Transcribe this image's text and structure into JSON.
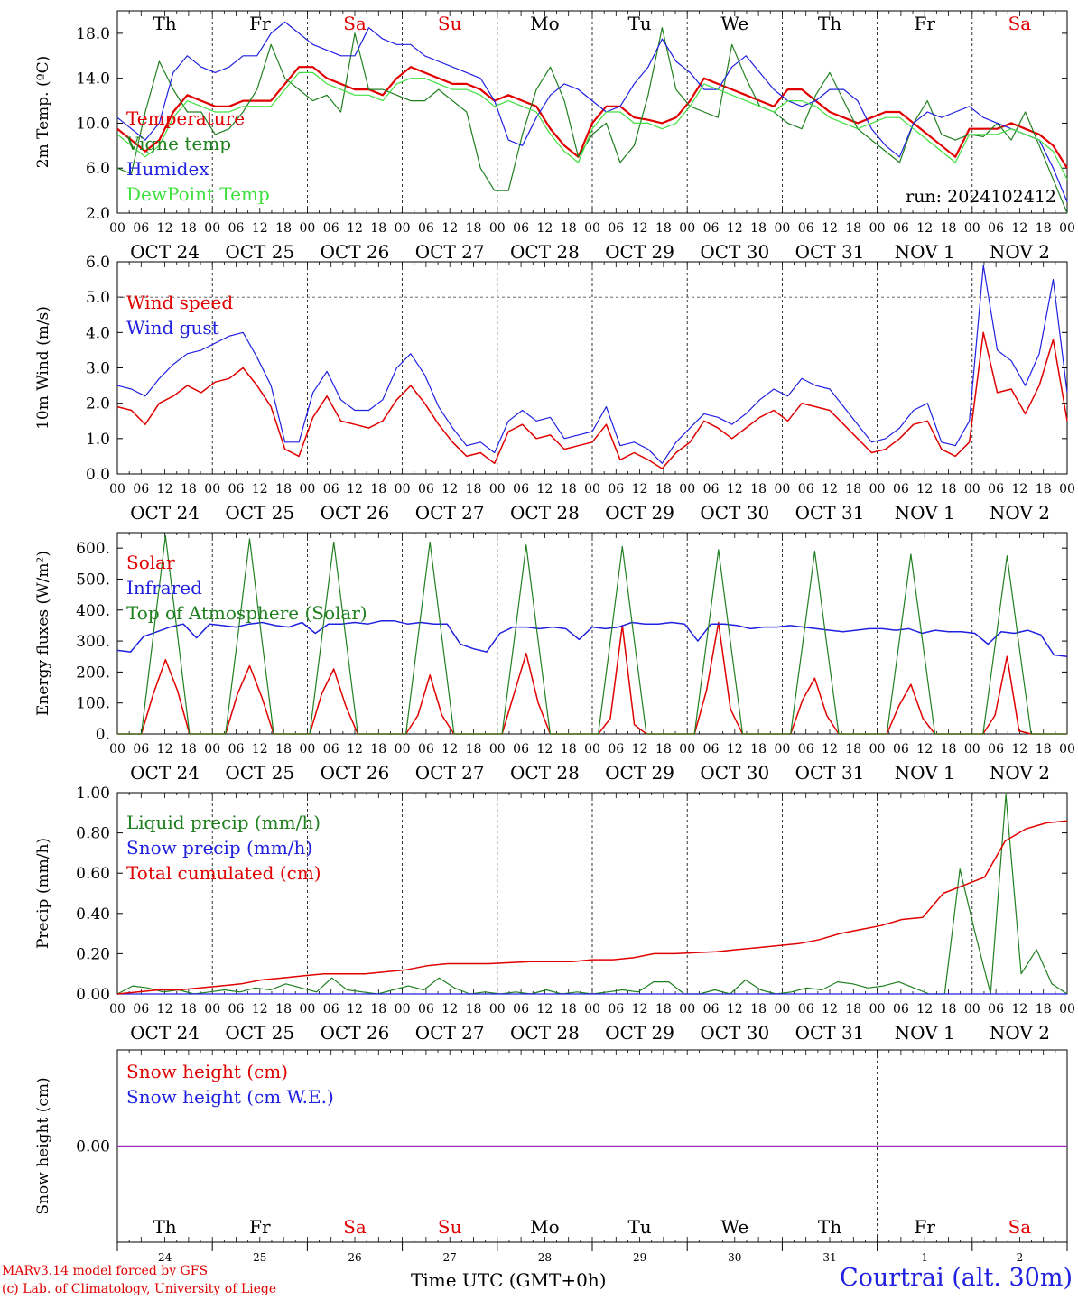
{
  "run_label": "run: 2024102412",
  "weekdays": [
    {
      "label": "Th",
      "weekend": false
    },
    {
      "label": "Fr",
      "weekend": false
    },
    {
      "label": "Sa",
      "weekend": true
    },
    {
      "label": "Su",
      "weekend": true
    },
    {
      "label": "Mo",
      "weekend": false
    },
    {
      "label": "Tu",
      "weekend": false
    },
    {
      "label": "We",
      "weekend": false
    },
    {
      "label": "Th",
      "weekend": false
    },
    {
      "label": "Fr",
      "weekend": false
    },
    {
      "label": "Sa",
      "weekend": true
    }
  ],
  "dates": [
    "OCT 24",
    "OCT 25",
    "OCT 26",
    "OCT 27",
    "OCT 28",
    "OCT 29",
    "OCT 30",
    "OCT 31",
    "NOV  1",
    "NOV  2"
  ],
  "hour_ticks": [
    "00",
    "06",
    "12",
    "18"
  ],
  "day_numbers": [
    "24",
    "25",
    "26",
    "27",
    "28",
    "29",
    "30",
    "31",
    "1",
    "2"
  ],
  "footer": {
    "credit_line1": "MARv3.14 model forced by GFS",
    "credit_line2": "(c) Lab. of Climatology, University of Liege",
    "time_label": "Time UTC (GMT+0h)",
    "station": "Courtrai (alt. 30m)"
  },
  "colors": {
    "red": "#e00000",
    "green": "#208020",
    "blue": "#2020e0",
    "lightgreen": "#40e040",
    "purple": "#a030c0",
    "weekend": "#e00000"
  },
  "chart_data": [
    {
      "id": "temp",
      "type": "line",
      "ylabel": "2m Temp. (ºC)",
      "ylim": [
        2,
        20
      ],
      "ytick_values": [
        2,
        6,
        10,
        14,
        18
      ],
      "yticks": [
        "2.0",
        "6.0",
        "10.0",
        "14.0",
        "18.0"
      ],
      "step_hours": 3,
      "show_weekdays": true,
      "show_run": true,
      "series": [
        {
          "name": "Temperature",
          "color": "red",
          "width": 2.2,
          "values": [
            9.5,
            8.5,
            7.5,
            8.5,
            11,
            12.5,
            12,
            11.5,
            11.5,
            12,
            12,
            12,
            13.5,
            15,
            15,
            14,
            13.5,
            13,
            13,
            12.5,
            14,
            15,
            14.5,
            14,
            13.5,
            13.5,
            13,
            12,
            12.5,
            12,
            11.5,
            9.5,
            8,
            7,
            10,
            11.5,
            11.5,
            10.5,
            10.3,
            10,
            10.5,
            12,
            14,
            13.5,
            13,
            12.5,
            12,
            11.5,
            13,
            13,
            12,
            11,
            10.5,
            10,
            10.5,
            11,
            11,
            10,
            9,
            8,
            7,
            9.5,
            9.5,
            9.5,
            10,
            9.5,
            9,
            8,
            6
          ]
        },
        {
          "name": "Vigne temp",
          "color": "green",
          "width": 1.2,
          "values": [
            6,
            5.5,
            11,
            15.5,
            13,
            11,
            11,
            9,
            9.5,
            11,
            13,
            17,
            14,
            13,
            12,
            12.5,
            11,
            18,
            13,
            13,
            12.5,
            12,
            12,
            13,
            12,
            11,
            6,
            4,
            4,
            9,
            13,
            15,
            12,
            7,
            9,
            10,
            6.5,
            8,
            12.5,
            18.5,
            13,
            11.5,
            11,
            10.5,
            17,
            14,
            11.5,
            11,
            10,
            9.5,
            12.5,
            14.5,
            12,
            9.5,
            8.5,
            7.5,
            6.5,
            10,
            12,
            9,
            8.5,
            9,
            8.8,
            10,
            8.5,
            11,
            8,
            5,
            2
          ]
        },
        {
          "name": "Humidex",
          "color": "blue",
          "width": 1.2,
          "values": [
            10.5,
            9.5,
            8.5,
            10,
            14.5,
            16,
            15,
            14.5,
            15,
            16,
            16,
            18,
            19,
            18,
            17,
            16.5,
            16,
            16,
            18.5,
            17.5,
            17,
            17,
            16,
            15.5,
            15,
            14.5,
            14,
            12,
            8.5,
            8,
            10.5,
            12.5,
            13.5,
            13,
            12,
            11,
            11.5,
            13.5,
            15,
            17.5,
            15.5,
            14.5,
            13,
            13,
            15,
            16,
            14.5,
            13,
            12,
            11.5,
            12,
            13,
            13,
            12,
            9.5,
            8,
            7,
            10,
            11,
            10.5,
            11,
            11.5,
            10.5,
            10,
            9.5,
            9,
            8.5,
            6,
            3
          ]
        },
        {
          "name": "DewPoint Temp",
          "color": "lightgreen",
          "width": 1.2,
          "values": [
            9,
            8,
            7,
            8,
            10.5,
            12,
            11.5,
            11,
            11,
            11.5,
            11.5,
            11.5,
            13,
            14.5,
            14.5,
            13.5,
            13,
            12.5,
            12.5,
            12,
            13.5,
            14,
            14,
            13.5,
            13,
            13,
            12.5,
            11.5,
            12,
            11.5,
            11,
            9,
            7.5,
            6.5,
            9.5,
            11,
            11,
            10,
            10,
            9.5,
            10,
            11.5,
            13.5,
            13,
            12.5,
            12,
            11.5,
            11,
            12,
            12,
            11.5,
            10.5,
            10,
            9.5,
            10,
            10.5,
            10.5,
            9.5,
            8.5,
            7.5,
            6.5,
            9,
            9,
            9,
            9.5,
            9,
            8.5,
            7.5,
            5
          ]
        }
      ]
    },
    {
      "id": "wind",
      "type": "line",
      "ylabel": "10m Wind (m/s)",
      "ylim": [
        0,
        6
      ],
      "ytick_values": [
        0,
        1,
        2,
        3,
        4,
        5,
        6
      ],
      "yticks": [
        "0.0",
        "1.0",
        "2.0",
        "3.0",
        "4.0",
        "5.0",
        "6.0"
      ],
      "step_hours": 3,
      "refline": 5,
      "series": [
        {
          "name": "Wind speed",
          "color": "red",
          "width": 1.5,
          "values": [
            1.9,
            1.8,
            1.4,
            2.0,
            2.2,
            2.5,
            2.3,
            2.6,
            2.7,
            3.0,
            2.5,
            1.9,
            0.7,
            0.5,
            1.6,
            2.2,
            1.5,
            1.4,
            1.3,
            1.5,
            2.1,
            2.5,
            2.0,
            1.4,
            0.9,
            0.5,
            0.6,
            0.3,
            1.2,
            1.4,
            1.0,
            1.1,
            0.7,
            0.8,
            0.9,
            1.4,
            0.4,
            0.6,
            0.4,
            0.15,
            0.6,
            0.9,
            1.5,
            1.3,
            1.0,
            1.3,
            1.6,
            1.8,
            1.5,
            2.0,
            1.9,
            1.8,
            1.4,
            1.0,
            0.6,
            0.7,
            1.0,
            1.4,
            1.5,
            0.7,
            0.5,
            0.9,
            4.0,
            2.3,
            2.4,
            1.7,
            2.5,
            3.8,
            1.5
          ]
        },
        {
          "name": "Wind gust",
          "color": "blue",
          "width": 1.2,
          "values": [
            2.5,
            2.4,
            2.2,
            2.7,
            3.1,
            3.4,
            3.5,
            3.7,
            3.9,
            4.0,
            3.3,
            2.5,
            0.9,
            0.9,
            2.3,
            2.9,
            2.1,
            1.8,
            1.8,
            2.1,
            3.0,
            3.4,
            2.8,
            1.9,
            1.3,
            0.8,
            0.9,
            0.6,
            1.5,
            1.8,
            1.5,
            1.6,
            1.0,
            1.1,
            1.2,
            1.9,
            0.8,
            0.9,
            0.7,
            0.3,
            0.9,
            1.3,
            1.7,
            1.6,
            1.4,
            1.7,
            2.1,
            2.4,
            2.2,
            2.7,
            2.5,
            2.4,
            1.9,
            1.4,
            0.9,
            1.0,
            1.3,
            1.8,
            2.0,
            0.9,
            0.8,
            1.5,
            5.9,
            3.5,
            3.2,
            2.5,
            3.4,
            5.5,
            2.3
          ]
        }
      ]
    },
    {
      "id": "energy",
      "type": "line",
      "ylabel": "Energy fluxes (W/m²)",
      "ylim": [
        0,
        650
      ],
      "ytick_values": [
        0,
        100,
        200,
        300,
        400,
        500,
        600
      ],
      "yticks": [
        "0.",
        "100.",
        "200.",
        "300.",
        "400.",
        "500.",
        "600."
      ],
      "step_hours": 3,
      "series": [
        {
          "name": "Solar",
          "color": "red",
          "width": 1.5,
          "values": [
            0,
            0,
            0,
            130,
            240,
            140,
            0,
            0,
            0,
            0,
            130,
            220,
            120,
            0,
            0,
            0,
            0,
            130,
            210,
            90,
            0,
            0,
            0,
            0,
            0,
            60,
            190,
            60,
            0,
            0,
            0,
            0,
            0,
            130,
            260,
            100,
            0,
            0,
            0,
            0,
            0,
            50,
            350,
            30,
            0,
            0,
            0,
            0,
            0,
            140,
            360,
            80,
            0,
            0,
            0,
            0,
            0,
            110,
            180,
            60,
            0,
            0,
            0,
            0,
            0,
            90,
            160,
            50,
            0,
            0,
            0,
            0,
            0,
            60,
            250,
            10,
            0,
            0,
            0,
            0
          ]
        },
        {
          "name": "Infrared",
          "color": "blue",
          "width": 1.5,
          "values": [
            270,
            265,
            315,
            330,
            345,
            355,
            310,
            355,
            350,
            345,
            355,
            360,
            350,
            345,
            360,
            325,
            355,
            355,
            360,
            355,
            365,
            365,
            355,
            360,
            355,
            355,
            290,
            275,
            265,
            325,
            345,
            345,
            340,
            345,
            340,
            305,
            345,
            340,
            345,
            360,
            355,
            355,
            360,
            355,
            300,
            355,
            355,
            350,
            340,
            345,
            345,
            350,
            345,
            340,
            335,
            330,
            335,
            340,
            340,
            335,
            340,
            325,
            335,
            330,
            330,
            325,
            290,
            330,
            325,
            335,
            320,
            255,
            250
          ]
        },
        {
          "name": "Top of Atmosphere (Solar)",
          "color": "green",
          "width": 1.2,
          "values": [
            0,
            0,
            0,
            320,
            640,
            320,
            0,
            0,
            0,
            0,
            310,
            630,
            310,
            0,
            0,
            0,
            0,
            310,
            620,
            310,
            0,
            0,
            0,
            0,
            0,
            310,
            620,
            310,
            0,
            0,
            0,
            0,
            0,
            300,
            610,
            300,
            0,
            0,
            0,
            0,
            0,
            300,
            605,
            300,
            0,
            0,
            0,
            0,
            0,
            295,
            595,
            295,
            0,
            0,
            0,
            0,
            0,
            290,
            590,
            290,
            0,
            0,
            0,
            0,
            0,
            290,
            580,
            290,
            0,
            0,
            0,
            0,
            0,
            285,
            575,
            285,
            0,
            0,
            0,
            0
          ]
        }
      ]
    },
    {
      "id": "precip",
      "type": "line",
      "ylabel": "Precip (mm/h)",
      "ylim": [
        0,
        1
      ],
      "ytick_values": [
        0,
        0.2,
        0.4,
        0.6,
        0.8,
        1.0
      ],
      "yticks": [
        "0.00",
        "0.20",
        "0.40",
        "0.60",
        "0.80",
        "1.00"
      ],
      "step_hours": 3,
      "series": [
        {
          "name": "Liquid precip (mm/h)",
          "color": "green",
          "width": 1.2,
          "values": [
            0,
            0.04,
            0.03,
            0.01,
            0.02,
            0,
            0.01,
            0.02,
            0.01,
            0.03,
            0.02,
            0.05,
            0.03,
            0.01,
            0.08,
            0.02,
            0.01,
            0,
            0.02,
            0.04,
            0.02,
            0.08,
            0.03,
            0,
            0.01,
            0,
            0.01,
            0,
            0.02,
            0,
            0.01,
            0,
            0.01,
            0.02,
            0.01,
            0.06,
            0.06,
            0,
            0,
            0.02,
            0,
            0.07,
            0.02,
            0,
            0.01,
            0.03,
            0.02,
            0.06,
            0.05,
            0.03,
            0.04,
            0.06,
            0.03,
            0,
            0,
            0.62,
            0.3,
            0,
            0.99,
            0.1,
            0.22,
            0.05,
            0
          ]
        },
        {
          "name": "Snow precip (mm/h)",
          "color": "blue",
          "width": 1.2,
          "values": [
            0,
            0
          ]
        },
        {
          "name": "Total cumulated (cm)",
          "color": "red",
          "width": 1.5,
          "values": [
            0,
            0.01,
            0.02,
            0.02,
            0.03,
            0.04,
            0.05,
            0.07,
            0.08,
            0.09,
            0.1,
            0.1,
            0.1,
            0.11,
            0.12,
            0.14,
            0.15,
            0.15,
            0.15,
            0.155,
            0.16,
            0.16,
            0.16,
            0.17,
            0.17,
            0.18,
            0.2,
            0.2,
            0.205,
            0.21,
            0.22,
            0.23,
            0.24,
            0.25,
            0.27,
            0.3,
            0.32,
            0.34,
            0.37,
            0.38,
            0.5,
            0.54,
            0.58,
            0.76,
            0.82,
            0.85,
            0.86
          ]
        }
      ]
    },
    {
      "id": "snow",
      "type": "line",
      "ylabel": "Snow height (cm)",
      "ylim": [
        -1,
        1
      ],
      "ytick_values": [
        0
      ],
      "yticks": [
        "0.00"
      ],
      "step_hours": 3,
      "bottom_weekdays": true,
      "series": [
        {
          "name": "Snow height (cm)",
          "color": "red",
          "width": 1.2,
          "values": [
            0,
            0
          ]
        },
        {
          "name": "Snow height (cm W.E.)",
          "color": "blue",
          "width": 1.2,
          "values": [
            0,
            0
          ]
        }
      ]
    }
  ]
}
